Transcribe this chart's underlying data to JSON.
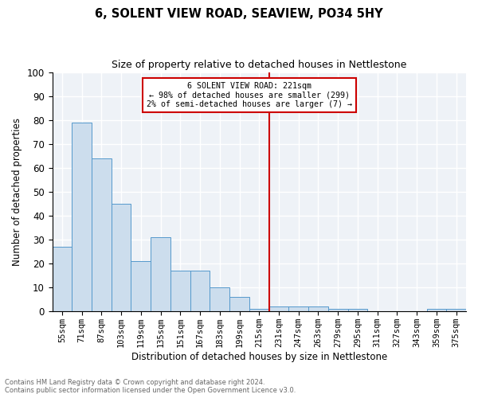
{
  "title1": "6, SOLENT VIEW ROAD, SEAVIEW, PO34 5HY",
  "title2": "Size of property relative to detached houses in Nettlestone",
  "xlabel": "Distribution of detached houses by size in Nettlestone",
  "ylabel": "Number of detached properties",
  "bin_labels": [
    "55sqm",
    "71sqm",
    "87sqm",
    "103sqm",
    "119sqm",
    "135sqm",
    "151sqm",
    "167sqm",
    "183sqm",
    "199sqm",
    "215sqm",
    "231sqm",
    "247sqm",
    "263sqm",
    "279sqm",
    "295sqm",
    "311sqm",
    "327sqm",
    "343sqm",
    "359sqm",
    "375sqm"
  ],
  "bin_values": [
    27,
    79,
    64,
    45,
    21,
    31,
    17,
    17,
    10,
    6,
    1,
    2,
    2,
    2,
    1,
    1,
    0,
    0,
    0,
    1,
    1
  ],
  "bar_color": "#ccdded",
  "bar_edge_color": "#5599cc",
  "vline_x": 10.5,
  "vline_color": "#cc0000",
  "annotation_text": "6 SOLENT VIEW ROAD: 221sqm\n← 98% of detached houses are smaller (299)\n2% of semi-detached houses are larger (7) →",
  "annotation_box_color": "#cc0000",
  "ylim": [
    0,
    100
  ],
  "yticks": [
    0,
    10,
    20,
    30,
    40,
    50,
    60,
    70,
    80,
    90,
    100
  ],
  "footnote1": "Contains HM Land Registry data © Crown copyright and database right 2024.",
  "footnote2": "Contains public sector information licensed under the Open Government Licence v3.0.",
  "bg_color": "#eef2f7",
  "fig_color": "#ffffff",
  "grid_color": "#ffffff"
}
